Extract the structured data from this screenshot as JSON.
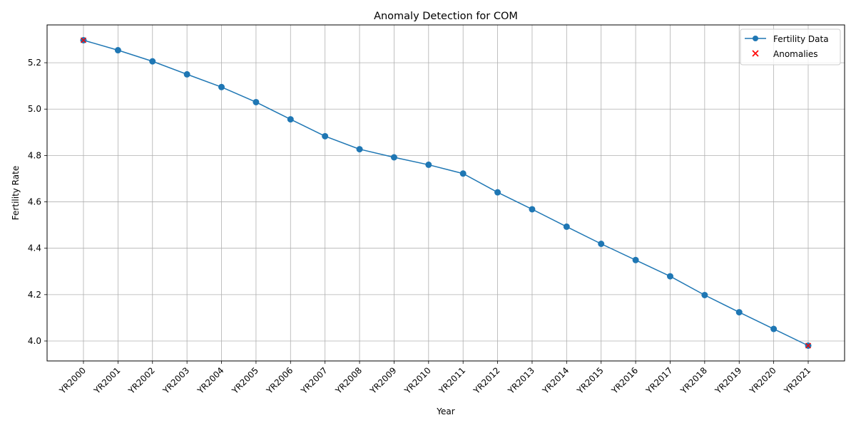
{
  "chart_data": {
    "type": "line",
    "title": "Anomaly Detection for COM",
    "xlabel": "Year",
    "ylabel": "Fertility Rate",
    "categories": [
      "YR2000",
      "YR2001",
      "YR2002",
      "YR2003",
      "YR2004",
      "YR2005",
      "YR2006",
      "YR2007",
      "YR2008",
      "YR2009",
      "YR2010",
      "YR2011",
      "YR2012",
      "YR2013",
      "YR2014",
      "YR2015",
      "YR2016",
      "YR2017",
      "YR2018",
      "YR2019",
      "YR2020",
      "YR2021"
    ],
    "series": [
      {
        "name": "Fertility Data",
        "color": "#1f77b4",
        "values": [
          5.297,
          5.254,
          5.206,
          5.15,
          5.095,
          5.03,
          4.956,
          4.883,
          4.827,
          4.792,
          4.76,
          4.722,
          4.641,
          4.568,
          4.493,
          4.419,
          4.349,
          4.279,
          4.198,
          4.124,
          4.052,
          3.98
        ]
      }
    ],
    "anomalies": {
      "name": "Anomalies",
      "color": "#ff0000",
      "marker": "x",
      "points": [
        {
          "x": "YR2000",
          "y": 5.297
        },
        {
          "x": "YR2021",
          "y": 3.98
        }
      ]
    },
    "ylim": [
      3.914,
      5.363
    ],
    "yticks": [
      "4.0",
      "4.2",
      "4.4",
      "4.6",
      "4.8",
      "5.0",
      "5.2"
    ],
    "grid": true,
    "legend_position": "top-right"
  }
}
